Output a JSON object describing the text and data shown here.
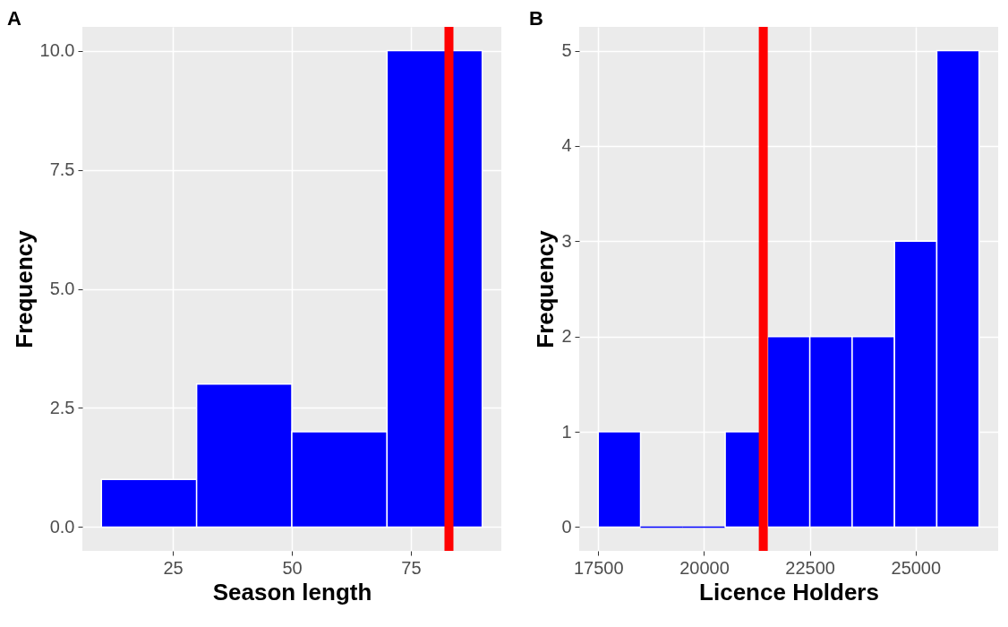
{
  "chart_data": [
    {
      "type": "histogram",
      "title": "A",
      "xlabel": "Season length",
      "ylabel": "Frequency",
      "bins": [
        10,
        30,
        50,
        70,
        90
      ],
      "values": [
        1,
        3,
        2,
        10
      ],
      "color": "#0000ff",
      "xlim": [
        6,
        94
      ],
      "ylim": [
        -0.5,
        10.5
      ],
      "xticks": [
        25,
        50,
        75
      ],
      "yticks": [
        {
          "value": 0,
          "label": "0.0"
        },
        2.5,
        {
          "value": 5,
          "label": "5.0"
        },
        7.5,
        {
          "value": 10,
          "label": "10.0"
        }
      ],
      "ref_lines": [
        {
          "axis": "x",
          "value": 83,
          "color": "#ff0000"
        }
      ],
      "grid": true
    },
    {
      "type": "histogram",
      "title": "B",
      "xlabel": "Licence Holders",
      "ylabel": "Frequency",
      "bins": [
        17500,
        18500,
        19500,
        20500,
        21500,
        22500,
        23500,
        24500,
        25500,
        26500
      ],
      "values": [
        1,
        0,
        0,
        1,
        2,
        2,
        2,
        3,
        5
      ],
      "color": "#0000ff",
      "xlim": [
        17050,
        26950
      ],
      "ylim": [
        -0.25,
        5.25
      ],
      "xticks": [
        17500,
        20000,
        22500,
        25000
      ],
      "yticks": [
        0,
        1,
        2,
        3,
        4,
        5
      ],
      "ref_lines": [
        {
          "axis": "x",
          "value": 21400,
          "color": "#ff0000"
        }
      ],
      "grid": true
    }
  ]
}
